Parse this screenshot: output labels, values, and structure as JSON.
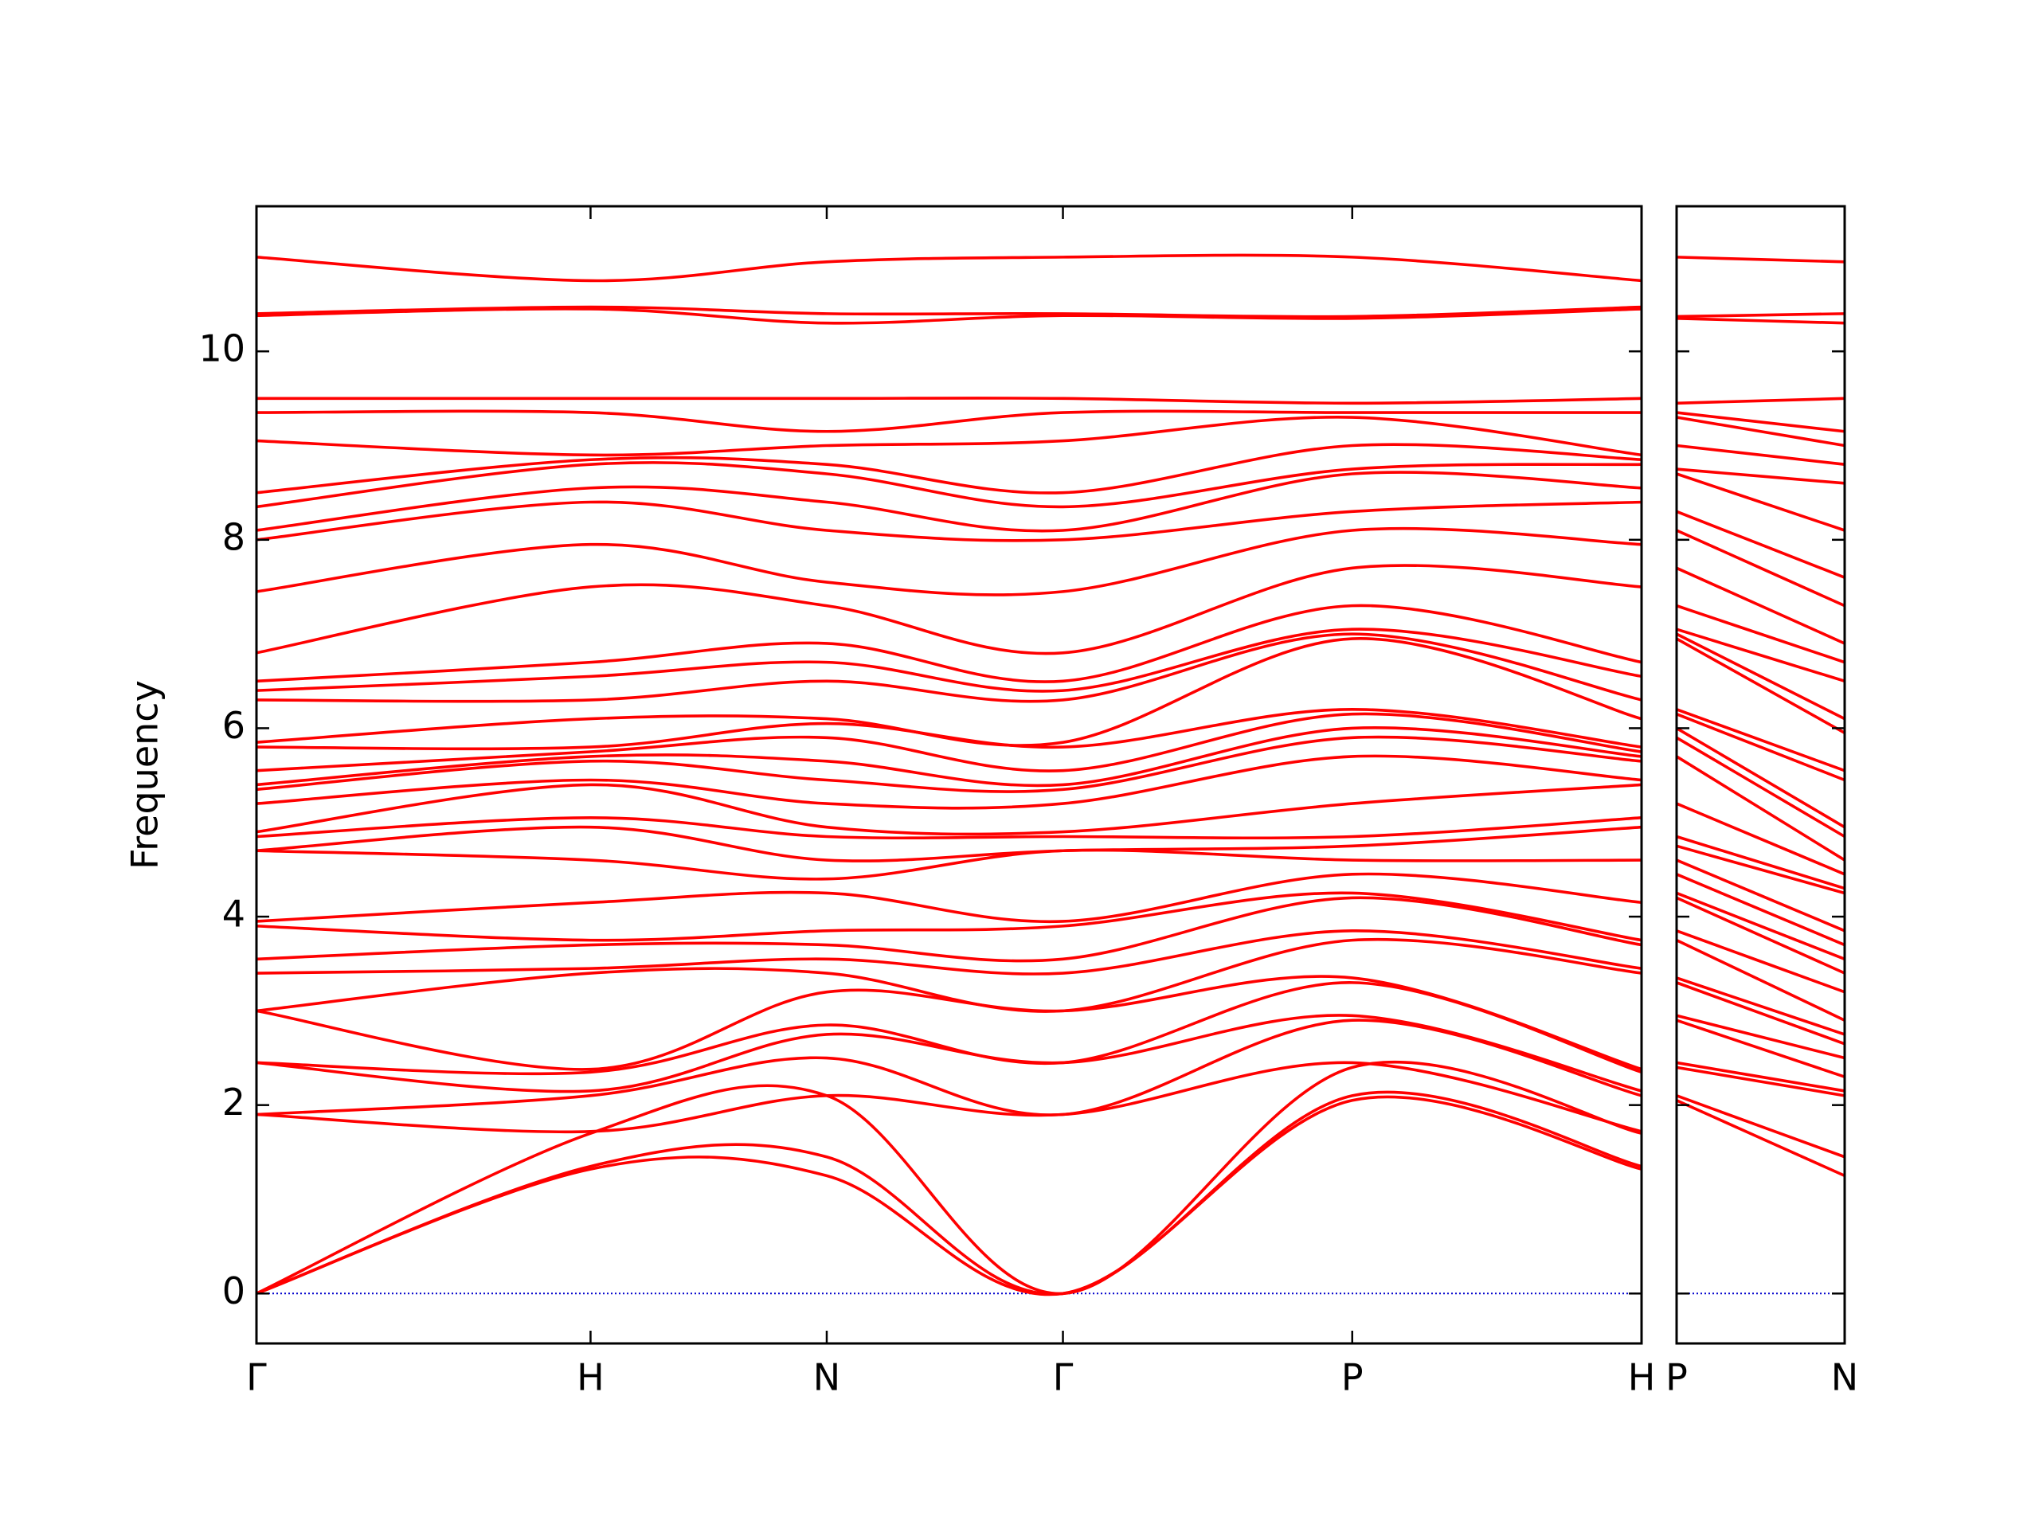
{
  "charts": [
    {
      "type": "line",
      "y_label": "Frequency",
      "color": "#ff0000",
      "x": [
        0,
        1,
        1.707,
        2.414,
        3.28,
        4.146
      ],
      "xlim": [
        0,
        4.146
      ],
      "xticks": [
        {
          "value": 0,
          "label": "Γ"
        },
        {
          "value": 1,
          "label": "H"
        },
        {
          "value": 1.707,
          "label": "N"
        },
        {
          "value": 2.414,
          "label": "Γ"
        },
        {
          "value": 3.28,
          "label": "P"
        },
        {
          "value": 4.146,
          "label": "H"
        }
      ],
      "ylim": [
        -0.53,
        11.54
      ],
      "yticks": [
        0,
        2,
        4,
        6,
        8,
        10
      ],
      "show_ytick_labels": true,
      "reference_line": {
        "y": 0,
        "color": "#0000cc",
        "style": "dotted"
      },
      "series": [
        {
          "values": [
            0,
            1.32,
            1.25,
            0,
            2.05,
            1.32
          ]
        },
        {
          "values": [
            0,
            1.35,
            1.45,
            0,
            2.1,
            1.35
          ]
        },
        {
          "values": [
            0,
            1.7,
            2.1,
            0,
            2.4,
            1.7
          ]
        },
        {
          "values": [
            1.9,
            1.72,
            2.1,
            1.9,
            2.45,
            1.72
          ]
        },
        {
          "values": [
            1.9,
            2.1,
            2.5,
            1.9,
            2.9,
            2.1
          ]
        },
        {
          "values": [
            2.45,
            2.15,
            2.75,
            2.45,
            2.95,
            2.15
          ]
        },
        {
          "values": [
            2.45,
            2.35,
            2.85,
            2.45,
            3.3,
            2.35
          ]
        },
        {
          "values": [
            3.0,
            2.38,
            3.2,
            3.0,
            3.35,
            2.38
          ]
        },
        {
          "values": [
            3.0,
            3.4,
            3.4,
            3.0,
            3.75,
            3.4
          ]
        },
        {
          "values": [
            3.4,
            3.45,
            3.55,
            3.4,
            3.85,
            3.45
          ]
        },
        {
          "values": [
            3.55,
            3.7,
            3.7,
            3.55,
            4.2,
            3.7
          ]
        },
        {
          "values": [
            3.9,
            3.75,
            3.85,
            3.9,
            4.25,
            3.75
          ]
        },
        {
          "values": [
            3.95,
            4.15,
            4.25,
            3.95,
            4.45,
            4.15
          ]
        },
        {
          "values": [
            4.7,
            4.6,
            4.4,
            4.7,
            4.6,
            4.6
          ]
        },
        {
          "values": [
            4.7,
            4.95,
            4.6,
            4.7,
            4.75,
            4.95
          ]
        },
        {
          "values": [
            4.85,
            5.05,
            4.85,
            4.85,
            4.85,
            5.05
          ]
        },
        {
          "values": [
            4.9,
            5.4,
            4.95,
            4.9,
            5.2,
            5.4
          ]
        },
        {
          "values": [
            5.2,
            5.45,
            5.2,
            5.2,
            5.7,
            5.45
          ]
        },
        {
          "values": [
            5.35,
            5.65,
            5.45,
            5.35,
            5.9,
            5.65
          ]
        },
        {
          "values": [
            5.4,
            5.7,
            5.65,
            5.4,
            6.0,
            5.7
          ]
        },
        {
          "values": [
            5.55,
            5.75,
            5.9,
            5.55,
            6.15,
            5.75
          ]
        },
        {
          "values": [
            5.8,
            5.8,
            6.05,
            5.8,
            6.2,
            5.8
          ]
        },
        {
          "values": [
            5.85,
            6.1,
            6.1,
            5.85,
            6.95,
            6.1
          ]
        },
        {
          "values": [
            6.3,
            6.3,
            6.5,
            6.3,
            7.0,
            6.3
          ]
        },
        {
          "values": [
            6.4,
            6.55,
            6.7,
            6.4,
            7.05,
            6.55
          ]
        },
        {
          "values": [
            6.5,
            6.7,
            6.9,
            6.5,
            7.3,
            6.7
          ]
        },
        {
          "values": [
            6.8,
            7.5,
            7.3,
            6.8,
            7.7,
            7.5
          ]
        },
        {
          "values": [
            7.45,
            7.95,
            7.55,
            7.45,
            8.1,
            7.95
          ]
        },
        {
          "values": [
            8.0,
            8.4,
            8.1,
            8.0,
            8.3,
            8.4
          ]
        },
        {
          "values": [
            8.1,
            8.55,
            8.4,
            8.1,
            8.7,
            8.55
          ]
        },
        {
          "values": [
            8.35,
            8.8,
            8.7,
            8.35,
            8.75,
            8.8
          ]
        },
        {
          "values": [
            8.5,
            8.85,
            8.8,
            8.5,
            9.0,
            8.85
          ]
        },
        {
          "values": [
            9.05,
            8.9,
            9.0,
            9.05,
            9.3,
            8.9
          ]
        },
        {
          "values": [
            9.35,
            9.35,
            9.15,
            9.35,
            9.35,
            9.35
          ]
        },
        {
          "values": [
            9.5,
            9.5,
            9.5,
            9.5,
            9.45,
            9.5
          ]
        },
        {
          "values": [
            10.38,
            10.45,
            10.3,
            10.38,
            10.35,
            10.45
          ]
        },
        {
          "values": [
            10.4,
            10.47,
            10.4,
            10.4,
            10.37,
            10.47
          ]
        },
        {
          "values": [
            11.0,
            10.75,
            10.95,
            11.0,
            11.0,
            10.75
          ]
        }
      ]
    },
    {
      "type": "line",
      "color": "#ff0000",
      "x": [
        4.146,
        4.646
      ],
      "xlim": [
        4.146,
        4.646
      ],
      "xticks": [
        {
          "value": 4.146,
          "label": "P"
        },
        {
          "value": 4.646,
          "label": "N"
        }
      ],
      "ylim": [
        -0.53,
        11.54
      ],
      "yticks": [
        0,
        2,
        4,
        6,
        8,
        10
      ],
      "show_ytick_labels": false,
      "reference_line": {
        "y": 0,
        "color": "#0000cc",
        "style": "dotted"
      },
      "series": [
        {
          "values": [
            2.05,
            1.25
          ]
        },
        {
          "values": [
            2.1,
            1.45
          ]
        },
        {
          "values": [
            2.4,
            2.1
          ]
        },
        {
          "values": [
            2.45,
            2.15
          ]
        },
        {
          "values": [
            2.9,
            2.3
          ]
        },
        {
          "values": [
            2.95,
            2.5
          ]
        },
        {
          "values": [
            3.3,
            2.65
          ]
        },
        {
          "values": [
            3.35,
            2.75
          ]
        },
        {
          "values": [
            3.75,
            2.9
          ]
        },
        {
          "values": [
            3.85,
            3.2
          ]
        },
        {
          "values": [
            4.2,
            3.4
          ]
        },
        {
          "values": [
            4.25,
            3.55
          ]
        },
        {
          "values": [
            4.45,
            3.7
          ]
        },
        {
          "values": [
            4.6,
            3.85
          ]
        },
        {
          "values": [
            4.75,
            4.25
          ]
        },
        {
          "values": [
            4.85,
            4.3
          ]
        },
        {
          "values": [
            5.2,
            4.45
          ]
        },
        {
          "values": [
            5.7,
            4.6
          ]
        },
        {
          "values": [
            5.9,
            4.85
          ]
        },
        {
          "values": [
            6.0,
            4.95
          ]
        },
        {
          "values": [
            6.15,
            5.45
          ]
        },
        {
          "values": [
            6.2,
            5.55
          ]
        },
        {
          "values": [
            6.95,
            5.95
          ]
        },
        {
          "values": [
            7.0,
            6.1
          ]
        },
        {
          "values": [
            7.05,
            6.5
          ]
        },
        {
          "values": [
            7.3,
            6.7
          ]
        },
        {
          "values": [
            7.7,
            6.9
          ]
        },
        {
          "values": [
            8.1,
            7.3
          ]
        },
        {
          "values": [
            8.3,
            7.6
          ]
        },
        {
          "values": [
            8.7,
            8.1
          ]
        },
        {
          "values": [
            8.75,
            8.6
          ]
        },
        {
          "values": [
            9.0,
            8.8
          ]
        },
        {
          "values": [
            9.3,
            9.0
          ]
        },
        {
          "values": [
            9.35,
            9.15
          ]
        },
        {
          "values": [
            9.45,
            9.5
          ]
        },
        {
          "values": [
            10.35,
            10.3
          ]
        },
        {
          "values": [
            10.37,
            10.4
          ]
        },
        {
          "values": [
            11.0,
            10.95
          ]
        }
      ]
    }
  ]
}
